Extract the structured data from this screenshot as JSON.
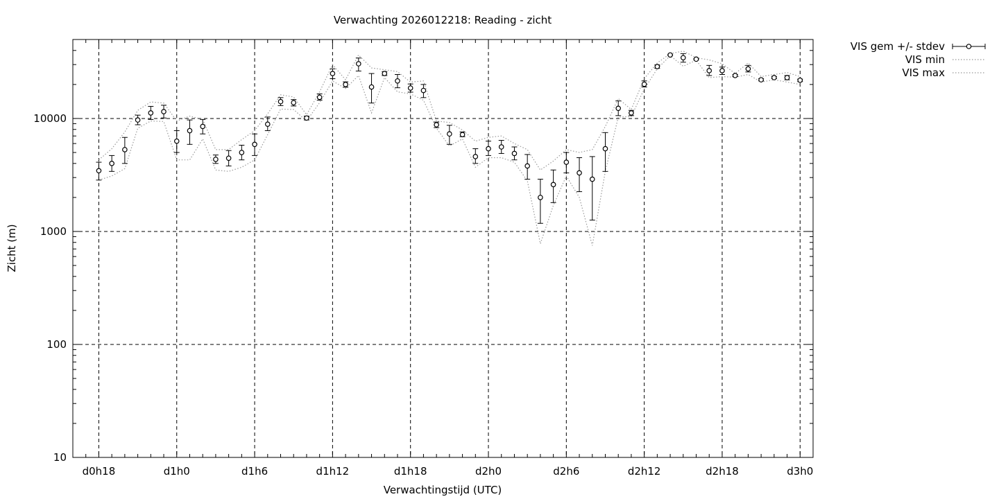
{
  "chart_data": {
    "type": "scatter",
    "title": "Verwachting 2026012218: Reading - zicht",
    "xlabel": "Verwachtingstijd (UTC)",
    "ylabel": "Zicht (m)",
    "yscale": "log",
    "ylim": [
      10,
      50000
    ],
    "xlim": [
      17,
      74
    ],
    "y_ticks": [
      {
        "value": 10,
        "label": "10"
      },
      {
        "value": 100,
        "label": "100"
      },
      {
        "value": 1000,
        "label": "1000"
      },
      {
        "value": 10000,
        "label": "10000"
      }
    ],
    "x_ticks": [
      {
        "value": 19,
        "label": "d0h18"
      },
      {
        "value": 25,
        "label": "d1h0"
      },
      {
        "value": 31,
        "label": "d1h6"
      },
      {
        "value": 37,
        "label": "d1h12"
      },
      {
        "value": 43,
        "label": "d1h18"
      },
      {
        "value": 49,
        "label": "d2h0"
      },
      {
        "value": 55,
        "label": "d2h6"
      },
      {
        "value": 61,
        "label": "d2h12"
      },
      {
        "value": 67,
        "label": "d2h18"
      },
      {
        "value": 73,
        "label": "d3h0"
      }
    ],
    "grid": true,
    "legend_position": "top-right outside",
    "series": [
      {
        "name": "VIS gem +/- stdev",
        "style": "points with error bars",
        "x": [
          19,
          20,
          21,
          22,
          23,
          24,
          25,
          26,
          27,
          28,
          29,
          30,
          31,
          32,
          33,
          34,
          35,
          36,
          37,
          38,
          39,
          40,
          41,
          42,
          43,
          44,
          45,
          46,
          47,
          48,
          49,
          50,
          51,
          52,
          53,
          54,
          55,
          56,
          57,
          58,
          59,
          60,
          61,
          62,
          63,
          64,
          65,
          66,
          67,
          68,
          69,
          70,
          71,
          72,
          73
        ],
        "mean": [
          3450,
          4000,
          5300,
          9700,
          11200,
          11500,
          6300,
          7800,
          8500,
          4350,
          4450,
          5000,
          5900,
          8900,
          14100,
          13800,
          10100,
          15400,
          25000,
          20000,
          30500,
          19000,
          25000,
          21500,
          18600,
          17700,
          8800,
          7300,
          7200,
          4600,
          5400,
          5600,
          4900,
          3800,
          2000,
          2600,
          4100,
          3300,
          2900,
          5400,
          12300,
          11200,
          20100,
          28800,
          36500,
          34500,
          33500,
          26500,
          26500,
          24000,
          27500,
          22000,
          23000,
          23000,
          21800
        ],
        "low": [
          2850,
          3400,
          4000,
          8800,
          9800,
          10100,
          5000,
          5900,
          7300,
          4000,
          3800,
          4300,
          4700,
          7800,
          13000,
          12900,
          9700,
          14500,
          22500,
          18900,
          26300,
          13700,
          24000,
          18700,
          17100,
          15300,
          8300,
          5900,
          6900,
          4000,
          4700,
          4900,
          4300,
          2900,
          1180,
          1800,
          3300,
          2250,
          1260,
          3400,
          10600,
          10600,
          19000,
          27800,
          36000,
          31500,
          33000,
          24000,
          24500,
          23500,
          25800,
          21500,
          22500,
          22000,
          21200
        ],
        "high": [
          4100,
          4700,
          6800,
          10700,
          12800,
          13100,
          7800,
          9700,
          9800,
          4750,
          5200,
          5800,
          7300,
          10300,
          15300,
          14700,
          10500,
          16500,
          27500,
          21100,
          34300,
          25000,
          26000,
          24500,
          20200,
          20000,
          9300,
          8700,
          7600,
          5400,
          6300,
          6400,
          5600,
          4800,
          2900,
          3500,
          5000,
          4500,
          4600,
          7500,
          14300,
          11800,
          21500,
          29800,
          37000,
          37500,
          34000,
          29500,
          28500,
          24500,
          29500,
          22500,
          23500,
          24000,
          22300
        ],
        "color": "#000000"
      },
      {
        "name": "VIS min",
        "style": "dotted line",
        "x": [
          19,
          20,
          21,
          22,
          23,
          24,
          25,
          26,
          27,
          28,
          29,
          30,
          31,
          32,
          33,
          34,
          35,
          36,
          37,
          38,
          39,
          40,
          41,
          42,
          43,
          44,
          45,
          46,
          47,
          48,
          49,
          50,
          51,
          52,
          53,
          54,
          55,
          56,
          57,
          58,
          59,
          60,
          61,
          62,
          63,
          64,
          65,
          66,
          67,
          68,
          69,
          70,
          71,
          72,
          73
        ],
        "values": [
          2850,
          3100,
          3600,
          8200,
          9500,
          9400,
          4300,
          4300,
          6600,
          3500,
          3400,
          3700,
          4300,
          7200,
          12100,
          12000,
          9500,
          13800,
          21500,
          18400,
          24000,
          11200,
          23000,
          17200,
          16500,
          14500,
          8200,
          5700,
          6600,
          3700,
          4500,
          4500,
          4100,
          2800,
          780,
          1700,
          3100,
          2000,
          750,
          3400,
          10300,
          10400,
          18200,
          27500,
          36000,
          29000,
          32800,
          23000,
          23500,
          23200,
          24500,
          21000,
          22000,
          21000,
          20000
        ],
        "color": "#999999"
      },
      {
        "name": "VIS max",
        "style": "dotted line",
        "x": [
          19,
          20,
          21,
          22,
          23,
          24,
          25,
          26,
          27,
          28,
          29,
          30,
          31,
          32,
          33,
          34,
          35,
          36,
          37,
          38,
          39,
          40,
          41,
          42,
          43,
          44,
          45,
          46,
          47,
          48,
          49,
          50,
          51,
          52,
          53,
          54,
          55,
          56,
          57,
          58,
          59,
          60,
          61,
          62,
          63,
          64,
          65,
          66,
          67,
          68,
          69,
          70,
          71,
          72,
          73
        ],
        "values": [
          4300,
          5400,
          7600,
          11800,
          14000,
          13700,
          9500,
          10500,
          9800,
          5300,
          5300,
          6500,
          7800,
          11000,
          16200,
          15500,
          10800,
          17200,
          30000,
          22000,
          36500,
          28000,
          27000,
          26000,
          21000,
          21500,
          9500,
          9200,
          7900,
          6300,
          6800,
          7000,
          6000,
          5300,
          3500,
          4200,
          5300,
          5000,
          5300,
          8500,
          15000,
          12000,
          22500,
          31000,
          37500,
          39500,
          34500,
          33000,
          30500,
          25000,
          31000,
          23500,
          24500,
          25500,
          23500
        ],
        "color": "#999999"
      }
    ]
  }
}
